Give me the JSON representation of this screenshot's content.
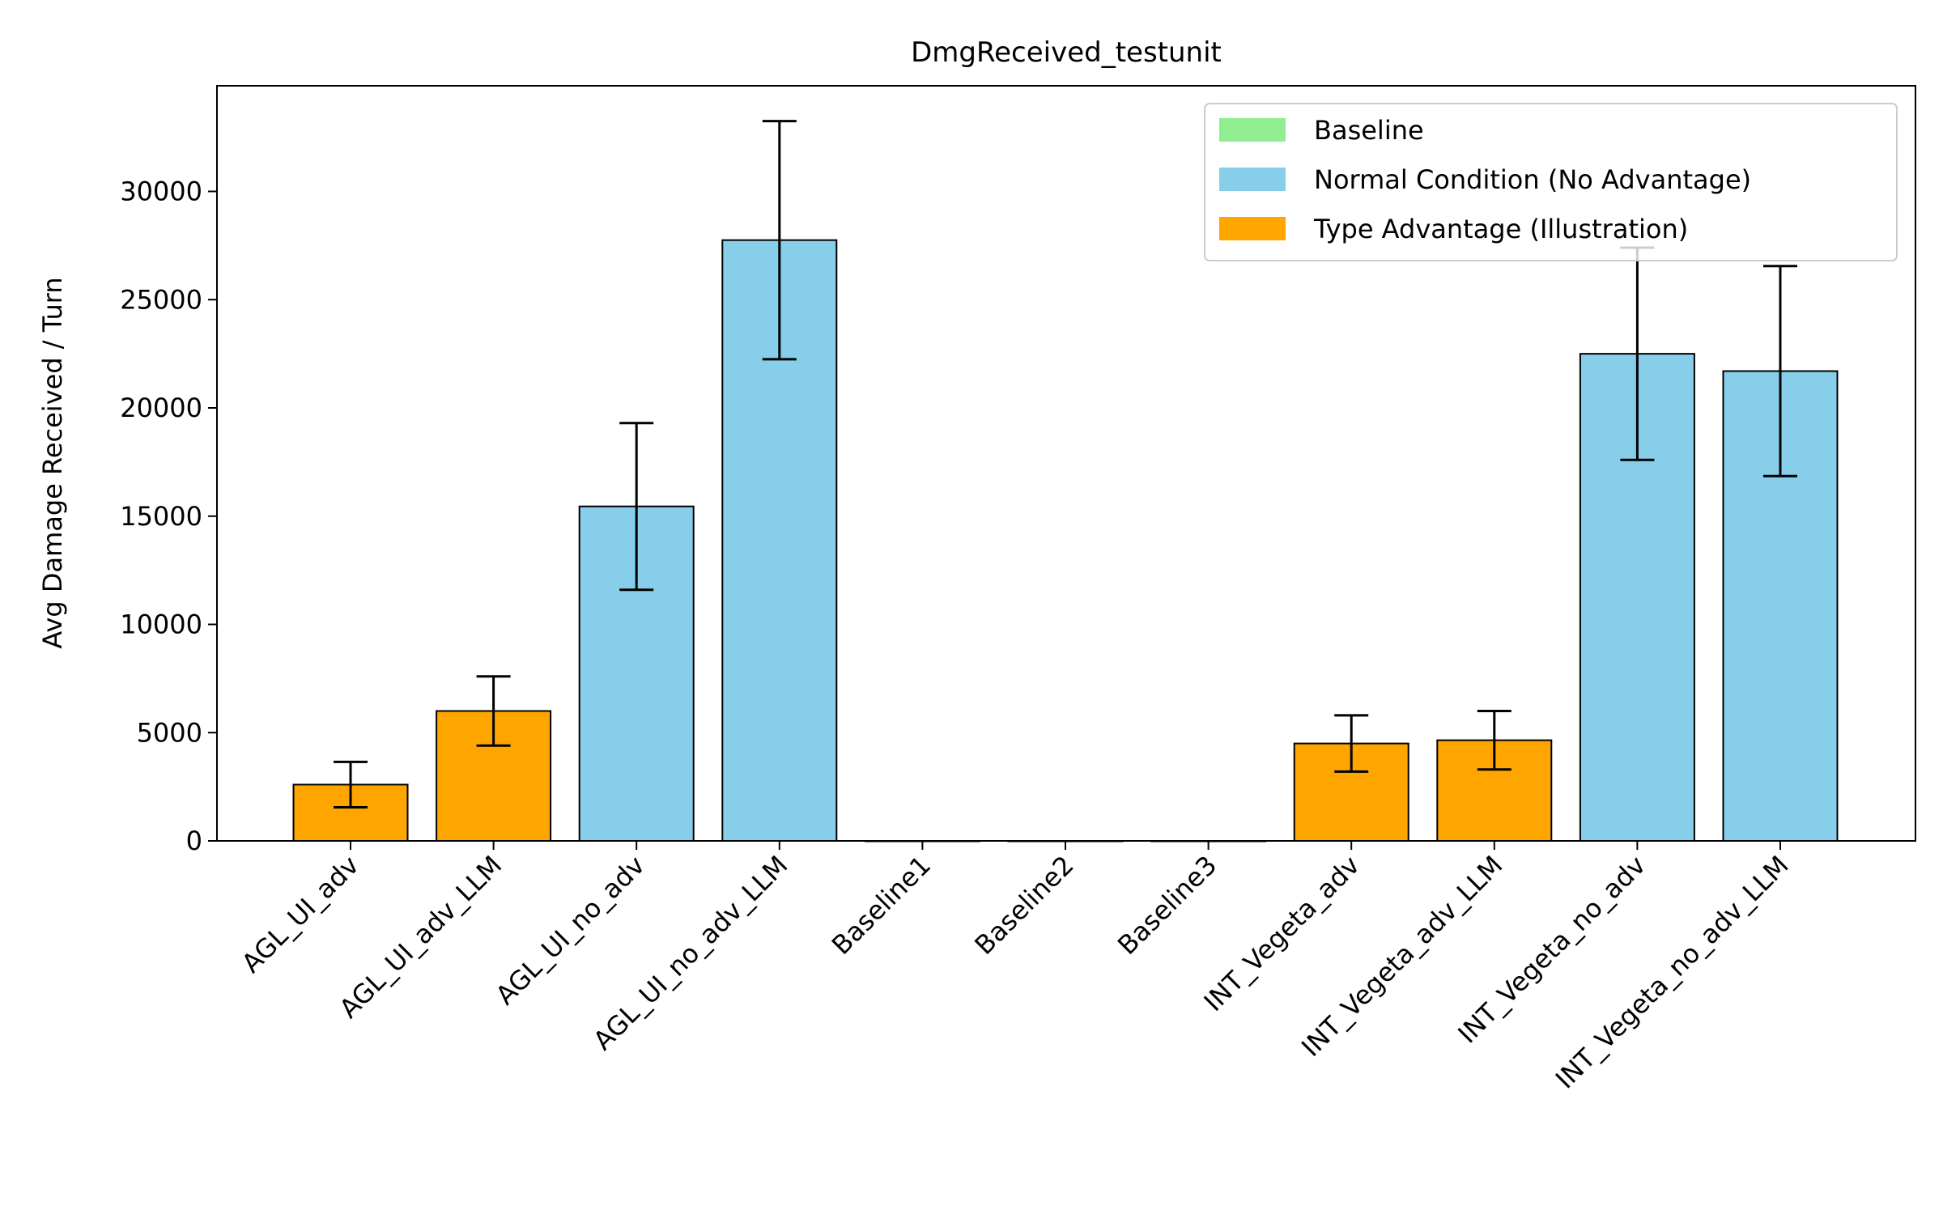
{
  "chart_data": {
    "type": "bar",
    "title": "DmgReceived_testunit",
    "xlabel": "",
    "ylabel": "Avg Damage Received / Turn",
    "ylim": [
      0,
      34500
    ],
    "yticks": [
      0,
      5000,
      10000,
      15000,
      20000,
      25000,
      30000
    ],
    "grid": false,
    "legend_position": "top-right",
    "legend": [
      {
        "label": "Baseline",
        "color": "#90ee90"
      },
      {
        "label": "Normal Condition (No Advantage)",
        "color": "#87ceeb"
      },
      {
        "label": "Type Advantage (Illustration)",
        "color": "#ffa500"
      }
    ],
    "categories": [
      "AGL_UI_adv",
      "AGL_UI_adv_LLM",
      "AGL_UI_no_adv",
      "AGL_UI_no_adv_LLM",
      "Baseline1",
      "Baseline2",
      "Baseline3",
      "INT_Vegeta_adv",
      "INT_Vegeta_adv_LLM",
      "INT_Vegeta_no_adv",
      "INT_Vegeta_no_adv_LLM"
    ],
    "values": [
      2600,
      6000,
      15450,
      27750,
      0,
      0,
      0,
      4500,
      4650,
      22500,
      21700
    ],
    "errors": [
      1050,
      1600,
      3850,
      5500,
      0,
      0,
      0,
      1300,
      1350,
      4900,
      4850
    ],
    "groups": [
      "Type Advantage (Illustration)",
      "Type Advantage (Illustration)",
      "Normal Condition (No Advantage)",
      "Normal Condition (No Advantage)",
      "Baseline",
      "Baseline",
      "Baseline",
      "Type Advantage (Illustration)",
      "Type Advantage (Illustration)",
      "Normal Condition (No Advantage)",
      "Normal Condition (No Advantage)"
    ]
  }
}
